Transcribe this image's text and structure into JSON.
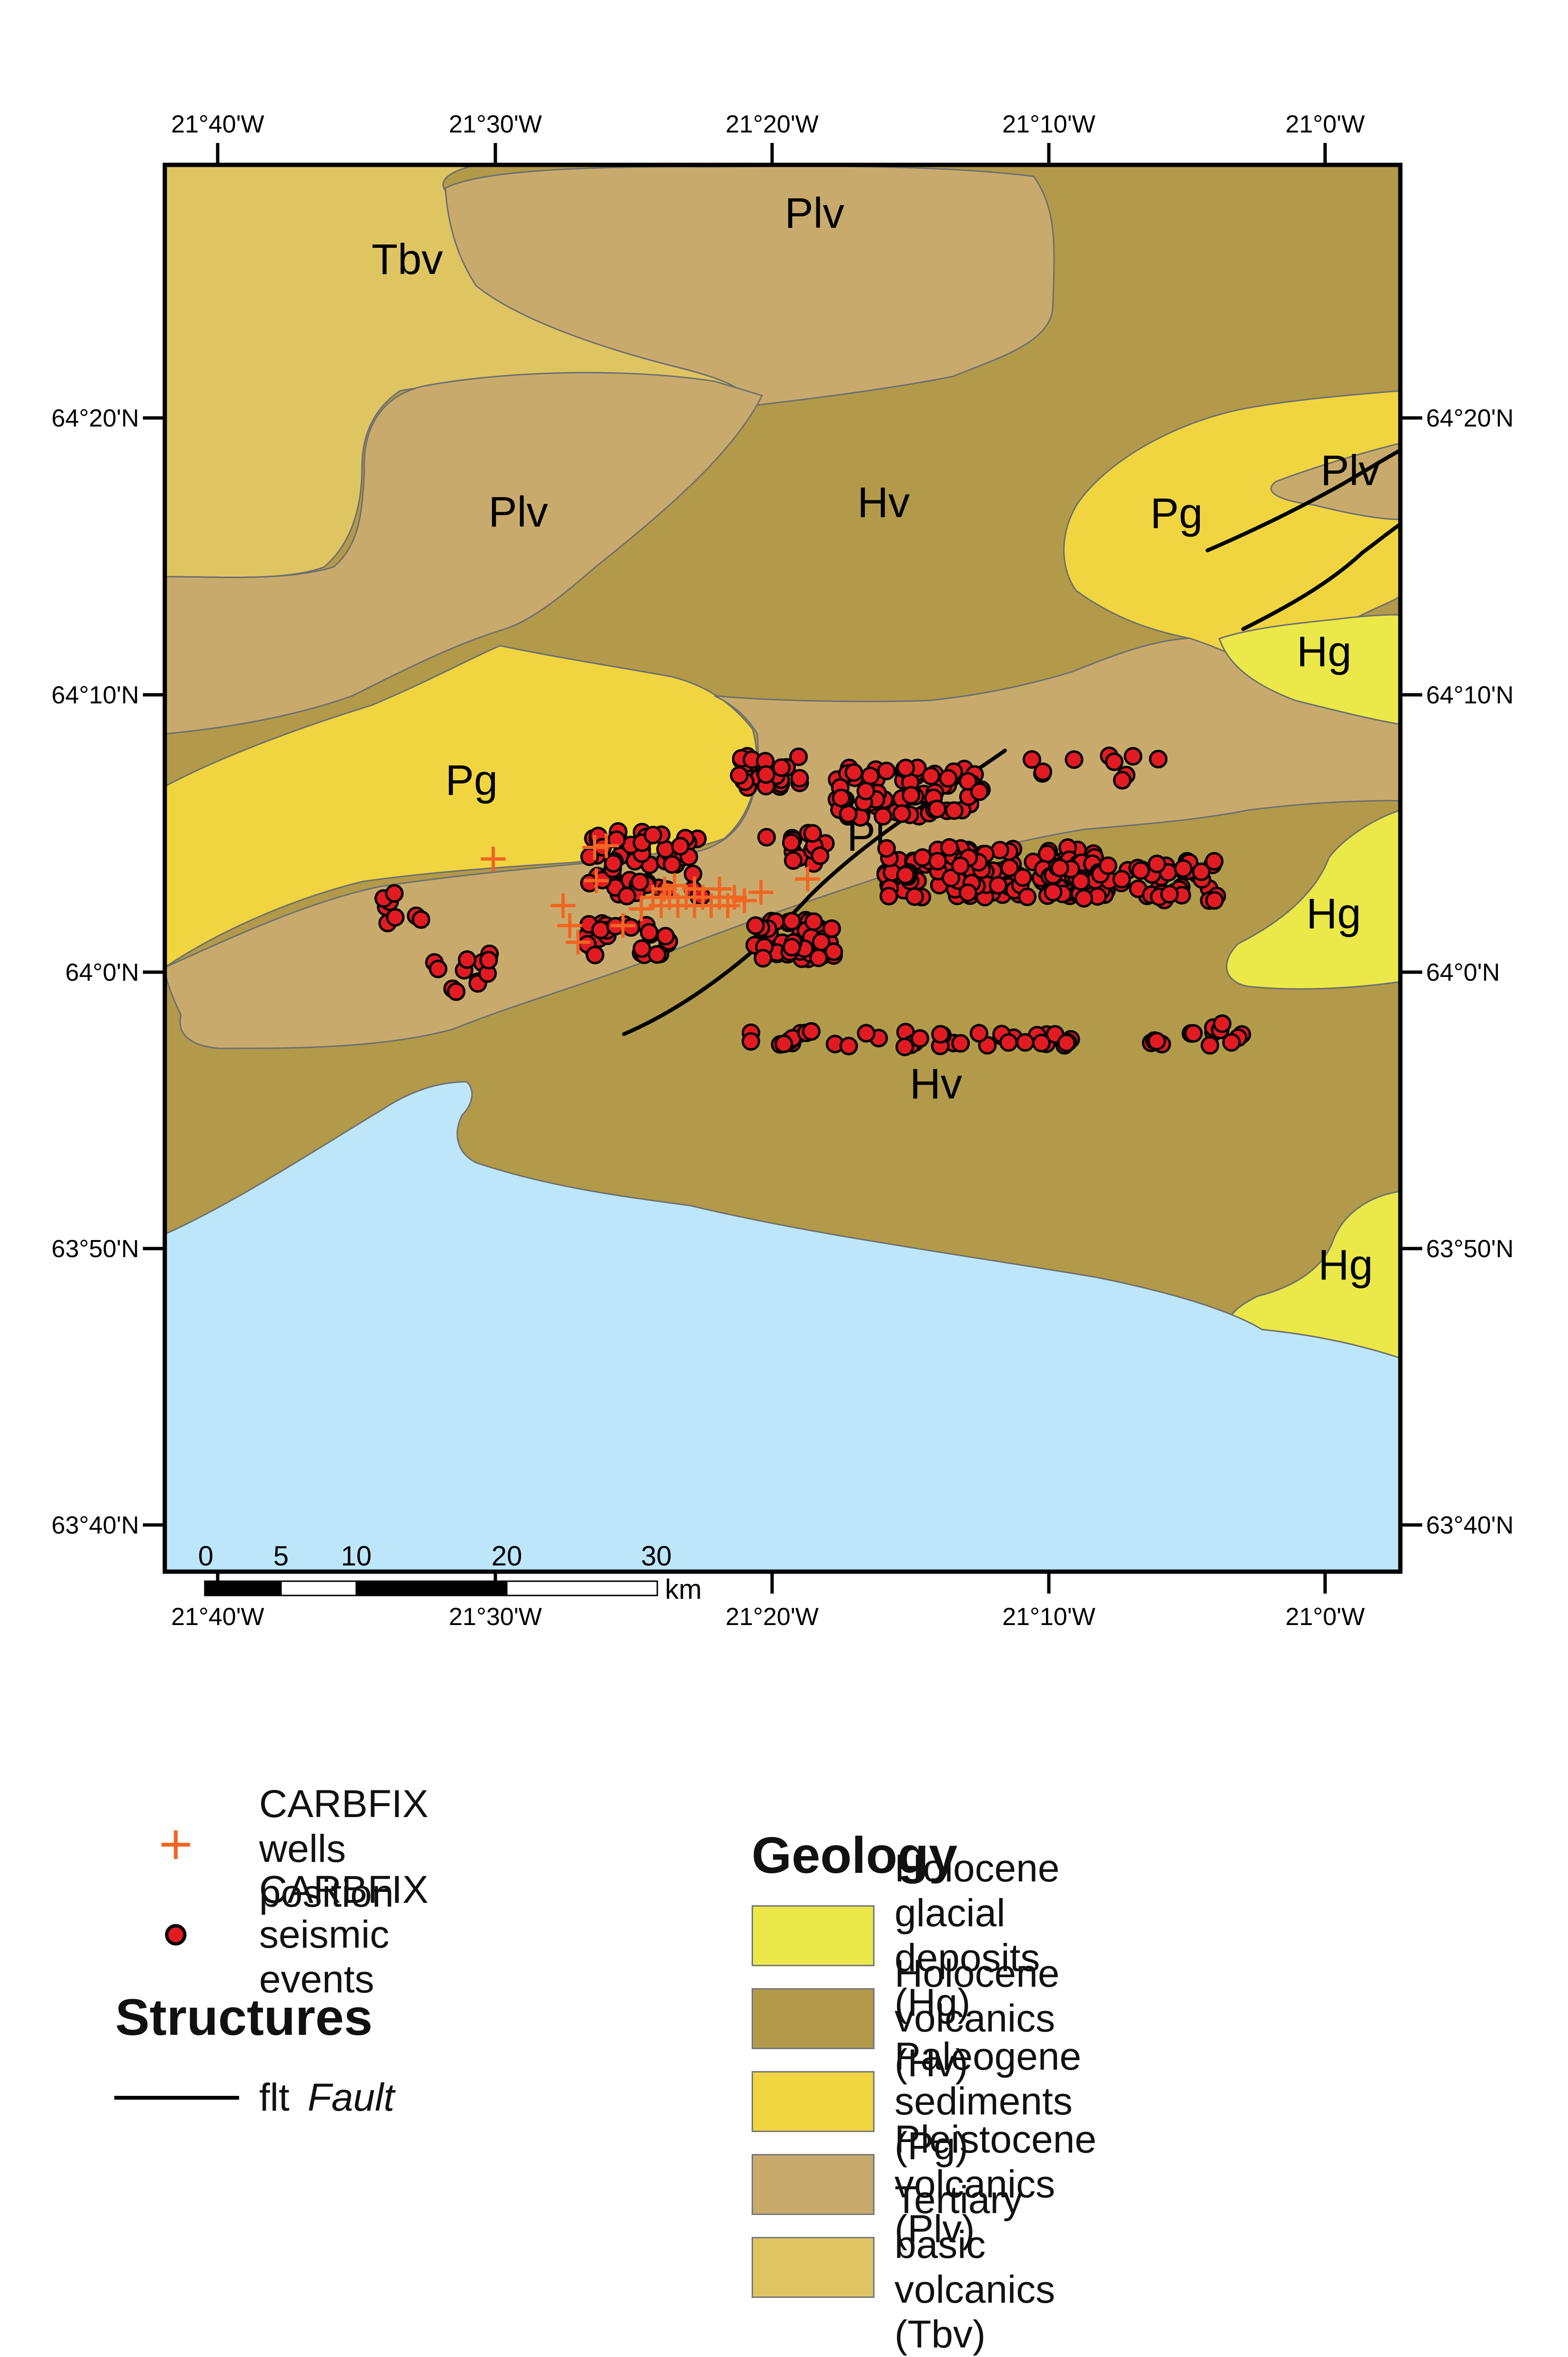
{
  "map": {
    "lon_ticks": [
      "21°40'W",
      "21°30'W",
      "21°20'W",
      "21°10'W",
      "21°0'W"
    ],
    "lat_ticks": [
      "64°20'N",
      "64°10'N",
      "64°0'N",
      "63°50'N",
      "63°40'N"
    ],
    "unit_labels": [
      "Tbv",
      "Plv",
      "Plv",
      "Hv",
      "Pg",
      "Plv",
      "Hg",
      "Pg",
      "Hg",
      "Hv",
      "Hg",
      "Pl"
    ],
    "scale_bar": {
      "ticks": [
        "0",
        "5",
        "10",
        "20",
        "30"
      ],
      "unit": "km"
    },
    "colors": {
      "sea": "#bde6fb",
      "Hg": "#ebe84a",
      "Hv": "#b29a4a",
      "Pg": "#f0d540",
      "Plv": "#c8ab6c",
      "Tbv": "#dfc562",
      "well": "#f26522",
      "event": "#e21b23"
    },
    "wells_lonlat": [
      [
        -21.501,
        64.068
      ],
      [
        -21.433,
        64.076
      ],
      [
        -21.44,
        64.075
      ],
      [
        -21.439,
        64.055
      ],
      [
        -21.459,
        64.04
      ],
      [
        -21.455,
        64.028
      ],
      [
        -21.45,
        64.018
      ],
      [
        -21.423,
        64.028
      ],
      [
        -21.412,
        64.038
      ],
      [
        -21.405,
        64.045
      ],
      [
        -21.4,
        64.04
      ],
      [
        -21.395,
        64.045
      ],
      [
        -21.39,
        64.04
      ],
      [
        -21.385,
        64.045
      ],
      [
        -21.38,
        64.04
      ],
      [
        -21.375,
        64.045
      ],
      [
        -21.37,
        64.04
      ],
      [
        -21.365,
        64.045
      ],
      [
        -21.36,
        64.04
      ],
      [
        -21.356,
        64.045
      ],
      [
        -21.35,
        64.043
      ],
      [
        -21.34,
        64.048
      ],
      [
        -21.312,
        64.056
      ],
      [
        -21.392,
        64.052
      ],
      [
        -21.398,
        64.05
      ],
      [
        -21.38,
        64.05
      ],
      [
        -21.365,
        64.05
      ]
    ],
    "event_clusters": [
      {
        "lon": -21.335,
        "lat": 64.12,
        "n": 34,
        "dlon": 0.02,
        "dlat": 0.01
      },
      {
        "lon": -21.25,
        "lat": 64.108,
        "n": 70,
        "dlon": 0.045,
        "dlat": 0.015
      },
      {
        "lon": -21.2,
        "lat": 64.06,
        "n": 130,
        "dlon": 0.065,
        "dlat": 0.015
      },
      {
        "lon": -21.12,
        "lat": 64.055,
        "n": 70,
        "dlon": 0.055,
        "dlat": 0.012
      },
      {
        "lon": -21.32,
        "lat": 64.02,
        "n": 55,
        "dlon": 0.025,
        "dlat": 0.012
      },
      {
        "lon": -21.41,
        "lat": 64.065,
        "n": 55,
        "dlon": 0.035,
        "dlat": 0.02
      },
      {
        "lon": -21.42,
        "lat": 64.02,
        "n": 25,
        "dlon": 0.025,
        "dlat": 0.01
      },
      {
        "lon": -21.52,
        "lat": 64.0,
        "n": 12,
        "dlon": 0.02,
        "dlat": 0.012
      },
      {
        "lon": -21.555,
        "lat": 64.04,
        "n": 8,
        "dlon": 0.012,
        "dlat": 0.012
      },
      {
        "lon": -21.25,
        "lat": 63.96,
        "n": 40,
        "dlon": 0.1,
        "dlat": 0.005
      },
      {
        "lon": -21.08,
        "lat": 63.963,
        "n": 14,
        "dlon": 0.03,
        "dlat": 0.007
      },
      {
        "lon": -21.32,
        "lat": 64.075,
        "n": 14,
        "dlon": 0.02,
        "dlat": 0.01
      },
      {
        "lon": -21.14,
        "lat": 64.125,
        "n": 10,
        "dlon": 0.04,
        "dlat": 0.01
      }
    ]
  },
  "legend": {
    "wells_label": "CARBFIX wells position",
    "events_label": "CARBFIX seismic events",
    "structures_title": "Structures",
    "fault_code": "flt",
    "fault_label": "Fault",
    "geology_title": "Geology",
    "geology_items": [
      {
        "label": "Holocene glacial deposits (Hg)",
        "color": "#ebe84a"
      },
      {
        "label": "Holocene volcanics (Hv)",
        "color": "#b29a4a"
      },
      {
        "label": "Paleogene sediments (Pg)",
        "color": "#f0d540"
      },
      {
        "label": "Pleistocene volcanics (Plv)",
        "color": "#c8ab6c"
      },
      {
        "label": "Tertiary basic volcanics (Tbv)",
        "color": "#dfc562"
      }
    ]
  }
}
